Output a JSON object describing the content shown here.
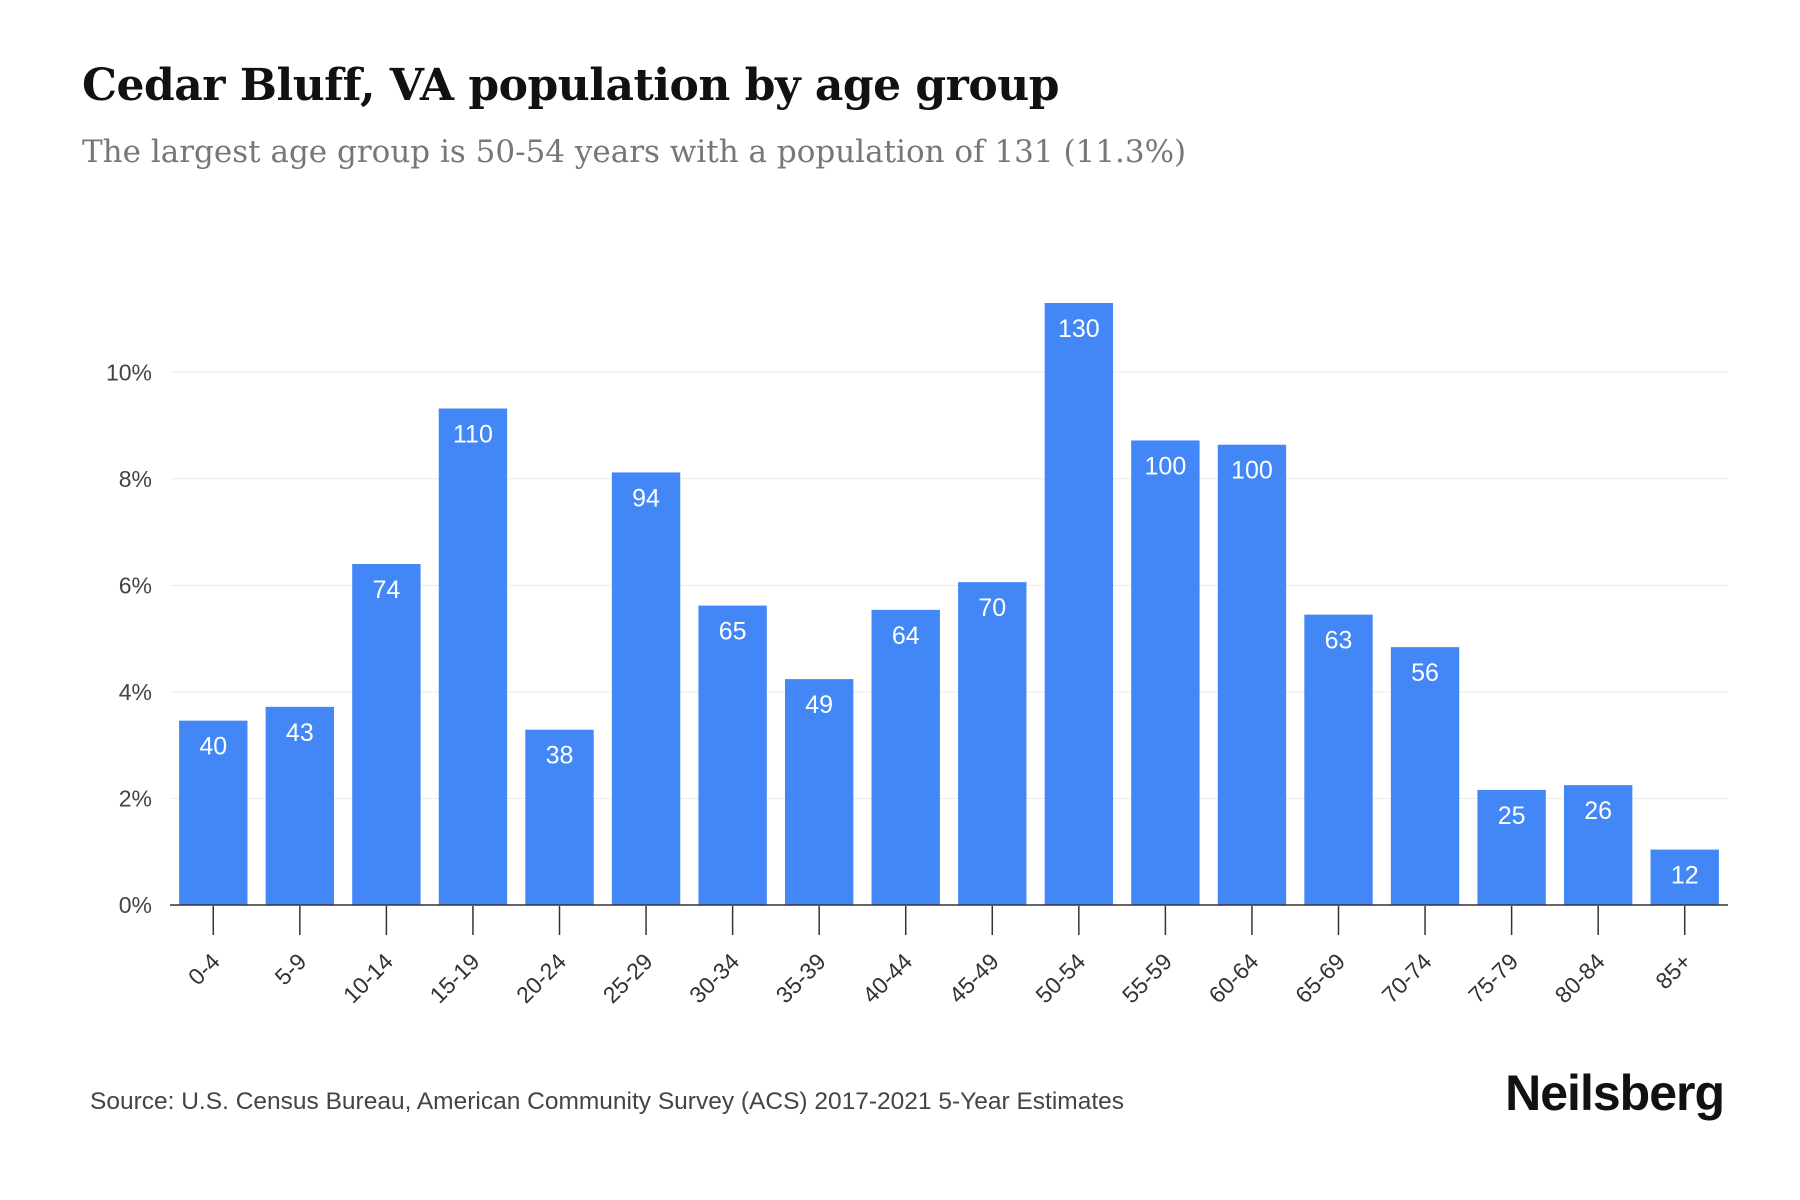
{
  "header": {
    "title": "Cedar Bluff, VA population by age group",
    "subtitle": "The largest age group is 50-54 years with a population of 131 (11.3%)"
  },
  "chart_data": {
    "type": "bar",
    "categories": [
      "0-4",
      "5-9",
      "10-14",
      "15-19",
      "20-24",
      "25-29",
      "30-34",
      "35-39",
      "40-44",
      "45-49",
      "50-54",
      "55-59",
      "60-64",
      "65-69",
      "70-74",
      "75-79",
      "80-84",
      "85+"
    ],
    "values": [
      3.46,
      3.72,
      6.4,
      9.32,
      3.29,
      8.12,
      5.62,
      4.24,
      5.54,
      6.06,
      11.3,
      8.72,
      8.64,
      5.45,
      4.84,
      2.16,
      2.25,
      1.04
    ],
    "data_labels": [
      "40",
      "43",
      "74",
      "110",
      "38",
      "94",
      "65",
      "49",
      "64",
      "70",
      "130",
      "100",
      "100",
      "63",
      "56",
      "25",
      "26",
      "12"
    ],
    "y_ticks": [
      "0%",
      "2%",
      "4%",
      "6%",
      "8%",
      "10%"
    ],
    "y_tick_values": [
      0,
      2,
      4,
      6,
      8,
      10
    ],
    "ylim": [
      0,
      11.3
    ],
    "bar_color": "#4287f5",
    "grid": true,
    "xlabel": "",
    "ylabel": ""
  },
  "footer": {
    "source": "Source: U.S. Census Bureau, American Community Survey (ACS) 2017-2021 5-Year Estimates",
    "brand": "Neilsberg"
  }
}
